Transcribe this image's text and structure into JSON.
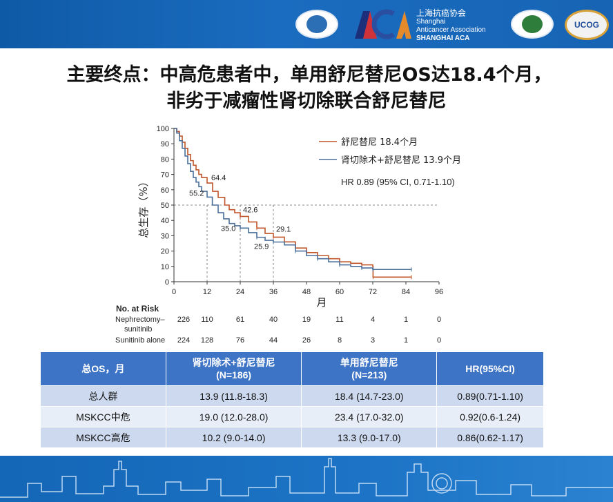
{
  "header": {
    "org_cn": "上海抗癌协会",
    "org_en_1": "Shanghai",
    "org_en_2": "Anticancer Association",
    "org_en_3": "SHANGHAI ACA",
    "logo_ucog": "UCOG"
  },
  "title": {
    "line1": "主要终点：中高危患者中，单用舒尼替尼OS达18.4个月，",
    "line2": "非劣于减瘤性肾切除联合舒尼替尼"
  },
  "chart_data": {
    "type": "line",
    "ylabel": "总生存（%）",
    "xlabel": "月",
    "x_ticks": [
      0,
      12,
      24,
      36,
      48,
      60,
      72,
      84,
      96
    ],
    "y_ticks": [
      0,
      10,
      20,
      30,
      40,
      50,
      60,
      70,
      80,
      90,
      100
    ],
    "xlim": [
      0,
      96
    ],
    "ylim": [
      0,
      100
    ],
    "reference_line_y": 50,
    "series": [
      {
        "name": "舒尼替尼 18.4个月",
        "color": "#c0552a",
        "points": [
          [
            0,
            100
          ],
          [
            1,
            98
          ],
          [
            2,
            95
          ],
          [
            3,
            91
          ],
          [
            4,
            87
          ],
          [
            5,
            83
          ],
          [
            6,
            79
          ],
          [
            7,
            76
          ],
          [
            8,
            73
          ],
          [
            9,
            70
          ],
          [
            10,
            68
          ],
          [
            12,
            64.4
          ],
          [
            14,
            59
          ],
          [
            16,
            55
          ],
          [
            18.4,
            50
          ],
          [
            20,
            47
          ],
          [
            22,
            45
          ],
          [
            24,
            42.6
          ],
          [
            27,
            39
          ],
          [
            30,
            35
          ],
          [
            33,
            31.5
          ],
          [
            36,
            29.1
          ],
          [
            40,
            26
          ],
          [
            44,
            22
          ],
          [
            48,
            19
          ],
          [
            52,
            17
          ],
          [
            56,
            15
          ],
          [
            60,
            13
          ],
          [
            64,
            12
          ],
          [
            68,
            11
          ],
          [
            72,
            10
          ],
          [
            72.1,
            3
          ],
          [
            84,
            3
          ],
          [
            86,
            3
          ]
        ]
      },
      {
        "name": "肾切除术+舒尼替尼 13.9个月",
        "color": "#4a6f9a",
        "points": [
          [
            0,
            100
          ],
          [
            1,
            97
          ],
          [
            2,
            92
          ],
          [
            3,
            87
          ],
          [
            4,
            82
          ],
          [
            5,
            77
          ],
          [
            6,
            72
          ],
          [
            7,
            68
          ],
          [
            8,
            65
          ],
          [
            9,
            62
          ],
          [
            10,
            59
          ],
          [
            12,
            55.2
          ],
          [
            13.9,
            50
          ],
          [
            16,
            45
          ],
          [
            18,
            41
          ],
          [
            20,
            38
          ],
          [
            22,
            36.5
          ],
          [
            24,
            35
          ],
          [
            27,
            32
          ],
          [
            30,
            29
          ],
          [
            33,
            27
          ],
          [
            36,
            25.9
          ],
          [
            40,
            24
          ],
          [
            44,
            20
          ],
          [
            48,
            17
          ],
          [
            52,
            15
          ],
          [
            56,
            13
          ],
          [
            60,
            11
          ],
          [
            64,
            10
          ],
          [
            68,
            9
          ],
          [
            72,
            8
          ],
          [
            72.1,
            8
          ],
          [
            84,
            8
          ],
          [
            86,
            8
          ]
        ]
      }
    ],
    "annotations": [
      {
        "x": 12,
        "y": 64.4,
        "text": "64.4"
      },
      {
        "x": 12,
        "y": 55.2,
        "text": "55.2"
      },
      {
        "x": 24,
        "y": 42.6,
        "text": "42.6"
      },
      {
        "x": 24,
        "y": 35.0,
        "text": "35.0"
      },
      {
        "x": 36,
        "y": 29.1,
        "text": "29.1"
      },
      {
        "x": 36,
        "y": 25.9,
        "text": "25.9"
      }
    ],
    "hr_text": "HR 0.89 (95% CI, 0.71-1.10)",
    "legend_position": "top-right"
  },
  "risk_table": {
    "title": "No. at Risk",
    "rows": [
      {
        "label1": "Nephrectomy–",
        "label2": "sunitinib",
        "values": [
          "226",
          "110",
          "61",
          "40",
          "19",
          "11",
          "4",
          "1",
          "0"
        ]
      },
      {
        "label1": "Sunitinib alone",
        "label2": "",
        "values": [
          "224",
          "128",
          "76",
          "44",
          "26",
          "8",
          "3",
          "1",
          "0"
        ]
      }
    ]
  },
  "os_table": {
    "headers": [
      {
        "l1": "总OS，月",
        "l2": ""
      },
      {
        "l1": "肾切除术+舒尼替尼",
        "l2": "(N=186)"
      },
      {
        "l1": "单用舒尼替尼",
        "l2": "(N=213)"
      },
      {
        "l1": "HR(95%CI)",
        "l2": ""
      }
    ],
    "rows": [
      [
        "总人群",
        "13.9 (11.8-18.3)",
        "18.4 (14.7-23.0)",
        "0.89(0.71-1.10)"
      ],
      [
        "MSKCC中危",
        "19.0 (12.0-28.0)",
        "23.4 (17.0-32.0)",
        "0.92(0.6-1.24)"
      ],
      [
        "MSKCC高危",
        "10.2 (9.0-14.0)",
        "13.3 (9.0-17.0)",
        "0.86(0.62-1.17)"
      ]
    ]
  },
  "colors": {
    "header_blue": "#1a6cc0",
    "table_header": "#3e74c6",
    "table_row_dark": "#cdd9ee",
    "table_row_light": "#e8eef8"
  }
}
